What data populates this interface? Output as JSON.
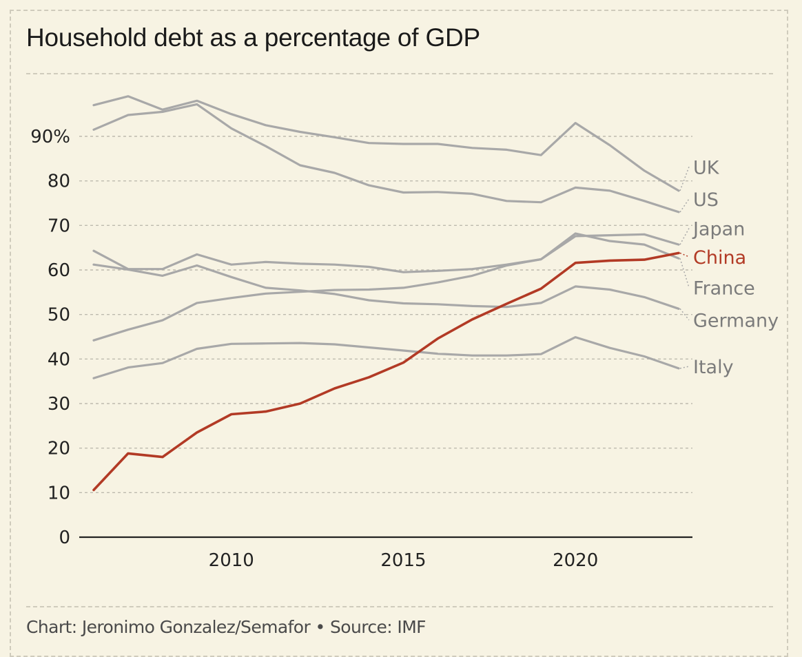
{
  "title": "Household debt as a percentage of GDP",
  "footer": "Chart: Jeronimo Gonzalez/Semafor • Source: IMF",
  "colors": {
    "background": "#f7f3e3",
    "muted": "#a8a8a8",
    "highlight": "#b23a25",
    "grid": "#bdbaae"
  },
  "chart_data": {
    "type": "line",
    "title": "Household debt as a percentage of GDP",
    "xlabel": "",
    "ylabel": "",
    "xlim": [
      2006,
      2023
    ],
    "ylim": [
      0,
      100
    ],
    "x_ticks": [
      2010,
      2015,
      2020
    ],
    "y_ticks": [
      0,
      10,
      20,
      30,
      40,
      50,
      60,
      70,
      80,
      90
    ],
    "y_tick_labels": [
      "0",
      "10",
      "20",
      "30",
      "40",
      "50",
      "60",
      "70",
      "80",
      "90%"
    ],
    "x": [
      2006,
      2007,
      2008,
      2009,
      2010,
      2011,
      2012,
      2013,
      2014,
      2015,
      2016,
      2017,
      2018,
      2019,
      2020,
      2021,
      2022,
      2023
    ],
    "series": [
      {
        "name": "UK",
        "highlight": false,
        "label_y": 83,
        "values": [
          97,
          99,
          96,
          98,
          95,
          92.5,
          91,
          89.8,
          88.5,
          88.3,
          88.3,
          87.4,
          87,
          85.8,
          93,
          88,
          82.3,
          77.8
        ]
      },
      {
        "name": "US",
        "highlight": false,
        "label_y": 75.8,
        "values": [
          91.5,
          94.8,
          95.5,
          97.2,
          91.8,
          87.8,
          83.5,
          81.8,
          79,
          77.4,
          77.5,
          77.1,
          75.5,
          75.2,
          78.5,
          77.8,
          75.5,
          73
        ]
      },
      {
        "name": "Japan",
        "highlight": false,
        "label_y": 69.2,
        "values": [
          64.3,
          60.2,
          60.2,
          63.5,
          61.2,
          61.8,
          61.4,
          61.2,
          60.7,
          59.5,
          59.8,
          60.2,
          61.2,
          62.4,
          67.6,
          67.8,
          68,
          65.7
        ]
      },
      {
        "name": "China",
        "highlight": true,
        "label_y": 62.8,
        "values": [
          10.6,
          18.8,
          18,
          23.5,
          27.6,
          28.2,
          30,
          33.4,
          35.9,
          39.2,
          44.6,
          48.9,
          52.4,
          55.8,
          61.6,
          62.1,
          62.3,
          63.8
        ]
      },
      {
        "name": "France",
        "highlight": false,
        "label_y": 55.9,
        "values": [
          44.2,
          46.6,
          48.7,
          52.6,
          53.7,
          54.7,
          55.1,
          55.5,
          55.6,
          56,
          57.2,
          58.7,
          61,
          62.4,
          68.2,
          66.5,
          65.7,
          62.6
        ]
      },
      {
        "name": "Germany",
        "highlight": false,
        "label_y": 48.6,
        "values": [
          61.2,
          60.1,
          58.7,
          61,
          58.4,
          56,
          55.4,
          54.6,
          53.2,
          52.5,
          52.3,
          51.9,
          51.7,
          52.6,
          56.3,
          55.6,
          53.9,
          51.3
        ]
      },
      {
        "name": "Italy",
        "highlight": false,
        "label_y": 38.2,
        "values": [
          35.7,
          38.1,
          39.1,
          42.3,
          43.4,
          43.5,
          43.6,
          43.3,
          42.6,
          41.9,
          41.2,
          40.8,
          40.8,
          41.1,
          44.9,
          42.5,
          40.6,
          37.9
        ]
      }
    ]
  }
}
